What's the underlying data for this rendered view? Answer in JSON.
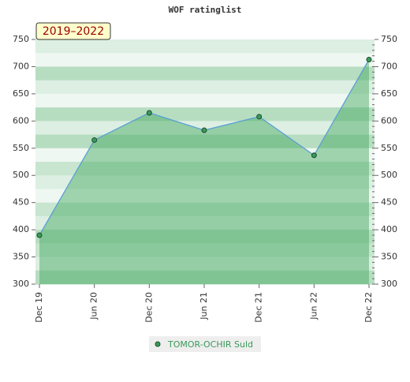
{
  "chart_data": {
    "type": "area",
    "title": "WOF ratinglist",
    "annotation": "2019–2022",
    "categories": [
      "Dec 19",
      "Jun 20",
      "Dec 20",
      "Jun 21",
      "Dec 21",
      "Jun 22",
      "Dec 22"
    ],
    "series": [
      {
        "name": "TOMOR-OCHIR Suld",
        "color": "#5a9fd4",
        "values": [
          390,
          565,
          615,
          583,
          608,
          537,
          713
        ]
      }
    ],
    "ylim": [
      300,
      750
    ],
    "yticks": [
      300,
      350,
      400,
      450,
      500,
      550,
      600,
      650,
      700,
      750
    ]
  }
}
